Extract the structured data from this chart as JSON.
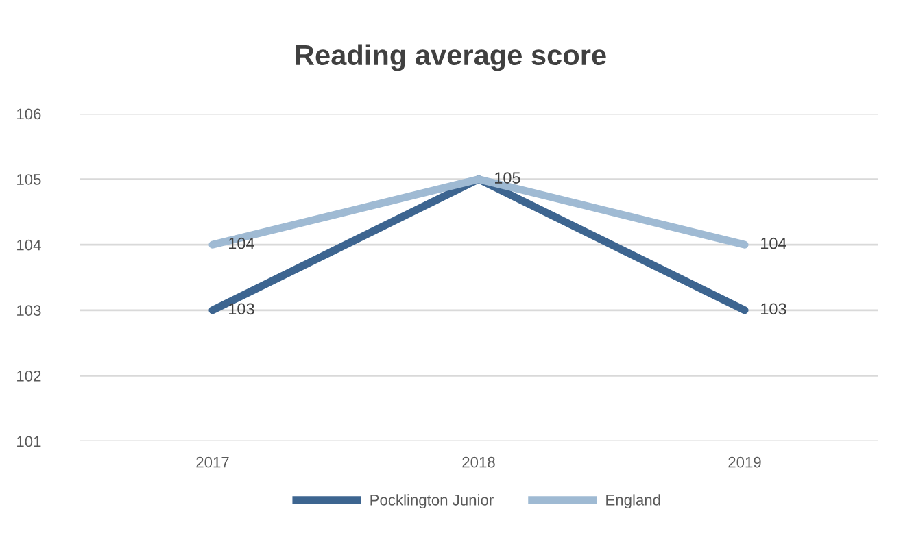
{
  "chart_data": {
    "type": "line",
    "title": "Reading average score",
    "categories": [
      "2017",
      "2018",
      "2019"
    ],
    "series": [
      {
        "name": "Pocklington Junior",
        "color": "#3d6590",
        "values": [
          103,
          105,
          103
        ],
        "value_labels": [
          "103",
          null,
          "103"
        ]
      },
      {
        "name": "England",
        "color": "#9fbad3",
        "values": [
          104,
          105,
          104
        ],
        "value_labels": [
          "104",
          "105",
          "104"
        ]
      }
    ],
    "ylim": [
      101,
      106
    ],
    "yticks": [
      101,
      102,
      103,
      104,
      105,
      106
    ],
    "grid": "y",
    "legend": "bottom",
    "marker": "none",
    "line_style": "solid"
  }
}
